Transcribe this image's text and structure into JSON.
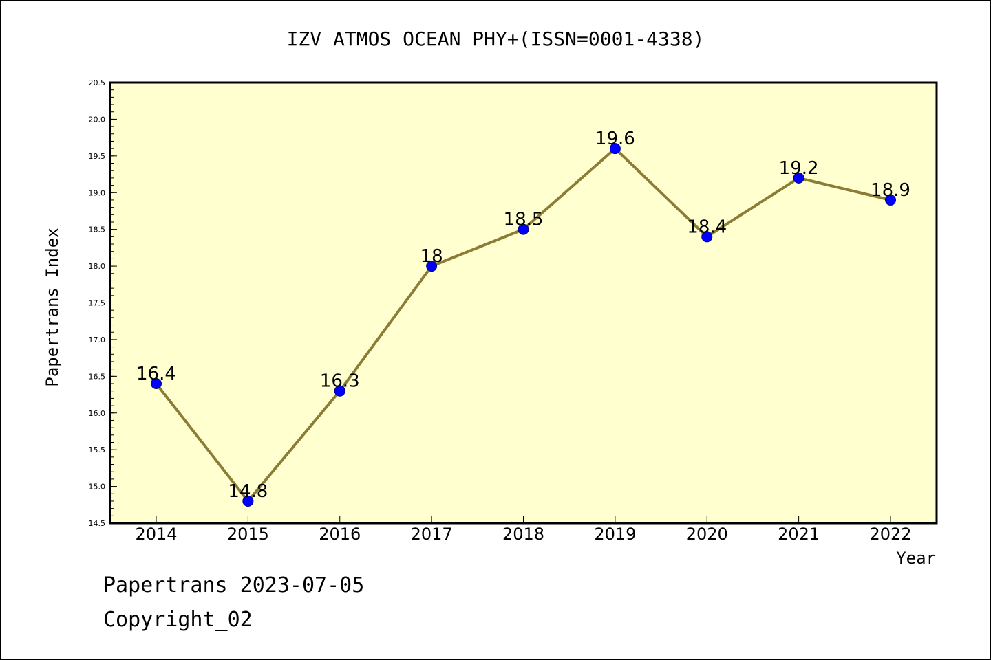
{
  "chart_data": {
    "type": "line",
    "title": "IZV ATMOS OCEAN PHY+(ISSN=0001-4338)",
    "xlabel": "Year",
    "ylabel": "Papertrans Index",
    "categories": [
      "2014",
      "2015",
      "2016",
      "2017",
      "2018",
      "2019",
      "2020",
      "2021",
      "2022"
    ],
    "values": [
      16.4,
      14.8,
      16.3,
      18,
      18.5,
      19.6,
      18.4,
      19.2,
      18.9
    ],
    "data_labels": [
      "16.4",
      "14.8",
      "16.3",
      "18",
      "18.5",
      "19.6",
      "18.4",
      "19.2",
      "18.9"
    ],
    "ylim": [
      14.5,
      20.5
    ],
    "yticks": [
      "14.5",
      "15.0",
      "15.5",
      "16.0",
      "16.5",
      "17.0",
      "17.5",
      "18.0",
      "18.5",
      "19.0",
      "19.5",
      "20.0",
      "20.5"
    ],
    "grid": false,
    "colors": {
      "plot_bg": "#ffffd0",
      "line": "#8b7d35",
      "marker": "#0000ff",
      "marker_edge": "#000080"
    }
  },
  "footer": {
    "source": "Papertrans 2023-07-05",
    "copyright": "Copyright_02"
  }
}
